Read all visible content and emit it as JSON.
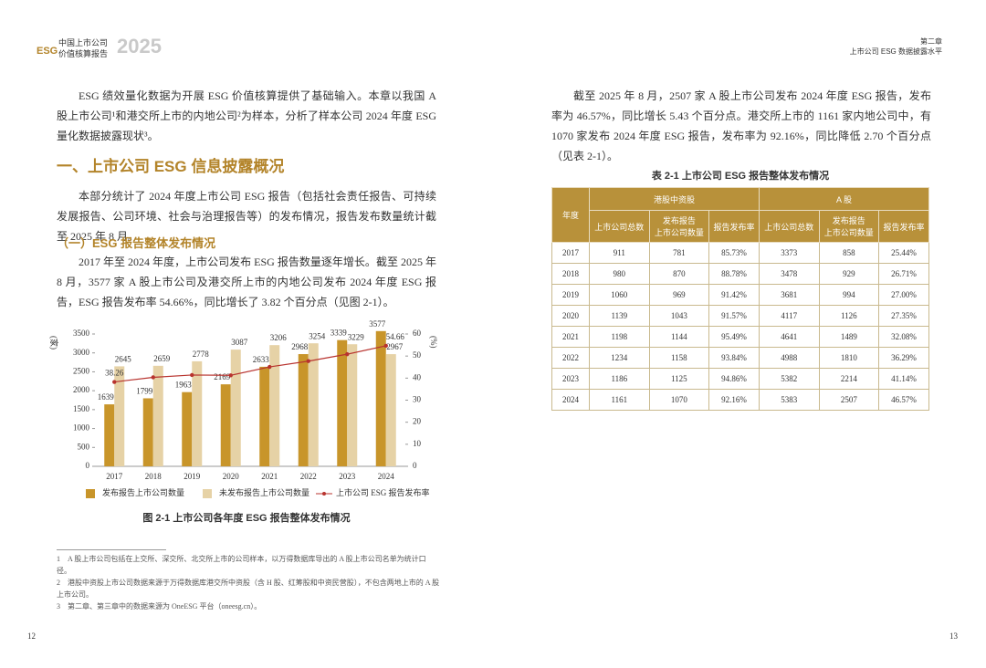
{
  "header": {
    "org": "中国上市公司",
    "brand": "ESG",
    "report": "价值核算报告",
    "year": "2025",
    "chapter": "第二章",
    "chapter_title": "上市公司 ESG 数据披露水平"
  },
  "left": {
    "intro": "ESG 绩效量化数据为开展 ESG 价值核算提供了基础输入。本章以我国 A 股上市公司¹和港交所上市的内地公司²为样本，分析了样本公司 2024 年度 ESG 量化数据披露现状³。",
    "heading": "一、上市公司 ESG 信息披露概况",
    "para1": "本部分统计了 2024 年度上市公司 ESG 报告（包括社会责任报告、可持续发展报告、公司环境、社会与治理报告等）的发布情况，报告发布数量统计截至 2025 年 8 月。",
    "subheading": "（一）ESG 报告整体发布情况",
    "para2": "2017 年至 2024 年度，上市公司发布 ESG 报告数量逐年增长。截至 2025 年 8 月，3577 家 A 股上市公司及港交所上市的内地公司发布 2024 年度 ESG 报告，ESG 报告发布率 54.66%，同比增长了 3.82 个百分点（见图 2-1）。",
    "footnotes": [
      "1　A 股上市公司包括在上交所、深交所、北交所上市的公司样本，以万得数据库导出的 A 股上市公司名单为统计口径。",
      "2　港股中资股上市公司数据来源于万得数据库港交所中资股（含 H 股、红筹股和中资民营股），不包含两地上市的 A 股上市公司。",
      "3　第二章、第三章中的数据来源为 OneESG 平台（oneesg.cn）。"
    ],
    "page": "12"
  },
  "chart_data": {
    "type": "bar",
    "caption": "图 2-1 上市公司各年度 ESG 报告整体发布情况",
    "ylabel": "(家)",
    "y2label": "(%)",
    "categories": [
      "2017",
      "2018",
      "2019",
      "2020",
      "2021",
      "2022",
      "2023",
      "2024"
    ],
    "series": [
      {
        "name": "发布报告上市公司数量",
        "color": "#c8952a",
        "values": [
          1639,
          1799,
          1963,
          2169,
          2633,
          2968,
          3339,
          3577
        ]
      },
      {
        "name": "未发布报告上市公司数量",
        "color": "#e6d2a6",
        "values": [
          2645,
          2659,
          2778,
          3087,
          3206,
          3254,
          3229,
          2967
        ]
      },
      {
        "name": "上市公司 ESG 报告发布率",
        "color": "#b8332e",
        "axis": "y2",
        "values": [
          38.26,
          40.35,
          41.4,
          41.27,
          45.09,
          47.7,
          50.84,
          54.66
        ],
        "value_labels": [
          "38.26",
          null,
          null,
          null,
          null,
          null,
          null,
          "54.66"
        ]
      }
    ],
    "ylim": [
      0,
      3500
    ],
    "yticks": [
      0,
      500,
      1000,
      1500,
      2000,
      2500,
      3000,
      3500
    ],
    "y2lim": [
      0,
      60
    ],
    "y2ticks": [
      0,
      10,
      20,
      30,
      40,
      50,
      60
    ],
    "grid": false
  },
  "right": {
    "para": "截至 2025 年 8 月，2507 家 A 股上市公司发布 2024 年度 ESG 报告，发布率为 46.57%，同比增长 5.43 个百分点。港交所上市的 1161 家内地公司中，有 1070 家发布 2024 年度 ESG 报告，发布率为 92.16%，同比降低 2.70 个百分点（见表 2-1）。",
    "page": "13"
  },
  "table": {
    "title": "表 2-1 上市公司 ESG 报告整体发布情况",
    "year_header": "年度",
    "groups": [
      "港股中资股",
      "A 股"
    ],
    "columns": [
      [
        "上市公司总数"
      ],
      [
        "发布报告",
        "上市公司数量"
      ],
      [
        "报告发布率"
      ],
      [
        "上市公司总数"
      ],
      [
        "发布报告",
        "上市公司数量"
      ],
      [
        "报告发布率"
      ]
    ],
    "rows": [
      [
        "2017",
        "911",
        "781",
        "85.73%",
        "3373",
        "858",
        "25.44%"
      ],
      [
        "2018",
        "980",
        "870",
        "88.78%",
        "3478",
        "929",
        "26.71%"
      ],
      [
        "2019",
        "1060",
        "969",
        "91.42%",
        "3681",
        "994",
        "27.00%"
      ],
      [
        "2020",
        "1139",
        "1043",
        "91.57%",
        "4117",
        "1126",
        "27.35%"
      ],
      [
        "2021",
        "1198",
        "1144",
        "95.49%",
        "4641",
        "1489",
        "32.08%"
      ],
      [
        "2022",
        "1234",
        "1158",
        "93.84%",
        "4988",
        "1810",
        "36.29%"
      ],
      [
        "2023",
        "1186",
        "1125",
        "94.86%",
        "5382",
        "2214",
        "41.14%"
      ],
      [
        "2024",
        "1161",
        "1070",
        "92.16%",
        "5383",
        "2507",
        "46.57%"
      ]
    ]
  }
}
